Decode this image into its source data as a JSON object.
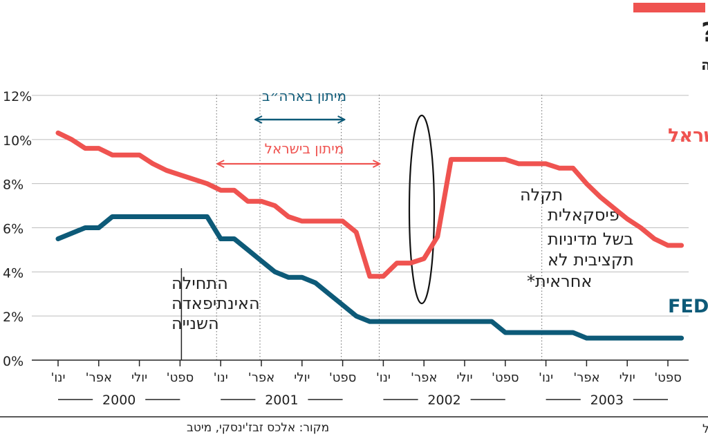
{
  "title": "איזוני הריבית: ההיסטוריה הכלכלית חוזרת?",
  "subtitle": "שיעורי הריבית בתקופת המיתון בארה״ב ובישראל באינתיפאדה השנייה",
  "colors": {
    "israel": "#ef5350",
    "fed": "#0d5a78",
    "accent_bar": "#ef5350",
    "text": "#222222",
    "grid": "#bbbbbb"
  },
  "annotations": {
    "us_recession": "מיתון בארה״ב",
    "israel_recession": "מיתון בישראל",
    "intifada": [
      "התחילה",
      "האינתיפאדה",
      "השנייה"
    ],
    "fiscal": [
      "תקלה",
      "פיסקאלית",
      "בשל מדיניות",
      "תקציבית לא",
      "אחראית*"
    ]
  },
  "footer": {
    "source": "מקור: אלכס זבז'ינסקי, מיטב",
    "note": "*בעקבות התקלה העלו את הריבית בישראל"
  },
  "chart_data": {
    "type": "line",
    "ylim": [
      0,
      12
    ],
    "yticks": [
      0,
      2,
      4,
      6,
      8,
      10,
      12
    ],
    "ytick_labels": [
      "0%",
      "2%",
      "4%",
      "6%",
      "8%",
      "10%",
      "12%"
    ],
    "x_ticks": [
      {
        "m": 0,
        "label": "ינו'"
      },
      {
        "m": 3,
        "label": "אפר'"
      },
      {
        "m": 6,
        "label": "יולי"
      },
      {
        "m": 9,
        "label": "ספט'"
      },
      {
        "m": 12,
        "label": "ינו'"
      },
      {
        "m": 15,
        "label": "אפר'"
      },
      {
        "m": 18,
        "label": "יולי"
      },
      {
        "m": 21,
        "label": "ספט'"
      },
      {
        "m": 24,
        "label": "ינו'"
      },
      {
        "m": 27,
        "label": "אפר'"
      },
      {
        "m": 30,
        "label": "יולי"
      },
      {
        "m": 33,
        "label": "ספט'"
      },
      {
        "m": 36,
        "label": "ינו'"
      },
      {
        "m": 39,
        "label": "אפר'"
      },
      {
        "m": 42,
        "label": "יולי"
      },
      {
        "m": 45,
        "label": "ספט'"
      }
    ],
    "years": [
      {
        "label": "2000",
        "from": 0,
        "to": 9
      },
      {
        "label": "2001",
        "from": 12,
        "to": 21
      },
      {
        "label": "2002",
        "from": 24,
        "to": 33
      },
      {
        "label": "2003",
        "from": 36,
        "to": 45
      }
    ],
    "series": [
      {
        "name": "ריבית בנק ישראל",
        "color": "#ef5350",
        "points": [
          [
            0,
            10.3
          ],
          [
            1,
            10.0
          ],
          [
            2,
            9.6
          ],
          [
            3,
            9.6
          ],
          [
            4,
            9.3
          ],
          [
            5,
            9.3
          ],
          [
            6,
            9.3
          ],
          [
            7,
            8.9
          ],
          [
            8,
            8.6
          ],
          [
            9,
            8.4
          ],
          [
            10,
            8.2
          ],
          [
            11,
            8.0
          ],
          [
            12,
            7.7
          ],
          [
            13,
            7.7
          ],
          [
            14,
            7.2
          ],
          [
            15,
            7.2
          ],
          [
            16,
            7.0
          ],
          [
            17,
            6.5
          ],
          [
            18,
            6.3
          ],
          [
            19,
            6.3
          ],
          [
            20,
            6.3
          ],
          [
            21,
            6.3
          ],
          [
            22,
            5.8
          ],
          [
            23,
            3.8
          ],
          [
            24,
            3.8
          ],
          [
            25,
            4.4
          ],
          [
            26,
            4.4
          ],
          [
            27,
            4.6
          ],
          [
            28,
            5.6
          ],
          [
            29,
            9.1
          ],
          [
            30,
            9.1
          ],
          [
            31,
            9.1
          ],
          [
            32,
            9.1
          ],
          [
            33,
            9.1
          ],
          [
            34,
            8.9
          ],
          [
            35,
            8.9
          ],
          [
            36,
            8.9
          ],
          [
            37,
            8.7
          ],
          [
            38,
            8.7
          ],
          [
            39,
            8.0
          ],
          [
            40,
            7.4
          ],
          [
            41,
            6.9
          ],
          [
            42,
            6.4
          ],
          [
            43,
            6.0
          ],
          [
            44,
            5.5
          ],
          [
            45,
            5.2
          ],
          [
            46,
            5.2
          ]
        ]
      },
      {
        "name": "ריבית ה־FED",
        "color": "#0d5a78",
        "points": [
          [
            0,
            5.5
          ],
          [
            1,
            5.75
          ],
          [
            2,
            6.0
          ],
          [
            3,
            6.0
          ],
          [
            4,
            6.5
          ],
          [
            5,
            6.5
          ],
          [
            6,
            6.5
          ],
          [
            7,
            6.5
          ],
          [
            8,
            6.5
          ],
          [
            9,
            6.5
          ],
          [
            10,
            6.5
          ],
          [
            11,
            6.5
          ],
          [
            12,
            5.5
          ],
          [
            13,
            5.5
          ],
          [
            14,
            5.0
          ],
          [
            15,
            4.5
          ],
          [
            16,
            4.0
          ],
          [
            17,
            3.75
          ],
          [
            18,
            3.75
          ],
          [
            19,
            3.5
          ],
          [
            20,
            3.0
          ],
          [
            21,
            2.5
          ],
          [
            22,
            2.0
          ],
          [
            23,
            1.75
          ],
          [
            24,
            1.75
          ],
          [
            25,
            1.75
          ],
          [
            26,
            1.75
          ],
          [
            27,
            1.75
          ],
          [
            28,
            1.75
          ],
          [
            29,
            1.75
          ],
          [
            30,
            1.75
          ],
          [
            31,
            1.75
          ],
          [
            32,
            1.75
          ],
          [
            33,
            1.25
          ],
          [
            34,
            1.25
          ],
          [
            35,
            1.25
          ],
          [
            36,
            1.25
          ],
          [
            37,
            1.25
          ],
          [
            38,
            1.25
          ],
          [
            39,
            1.0
          ],
          [
            40,
            1.0
          ],
          [
            41,
            1.0
          ],
          [
            42,
            1.0
          ],
          [
            43,
            1.0
          ],
          [
            44,
            1.0
          ],
          [
            45,
            1.0
          ],
          [
            46,
            1.0
          ]
        ]
      }
    ],
    "us_recession_range": [
      15,
      21
    ],
    "israel_recession_range": [
      12,
      24
    ],
    "intifada_start": 9
  }
}
